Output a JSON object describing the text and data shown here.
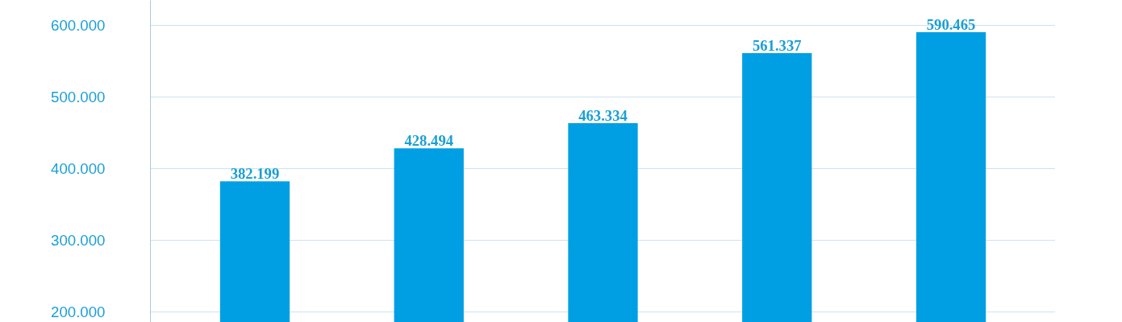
{
  "chart_data": {
    "type": "bar",
    "categories": [
      null,
      null,
      null,
      null,
      null
    ],
    "values": [
      382199,
      428494,
      463334,
      561337,
      590465
    ],
    "value_labels": [
      "382.199",
      "428.494",
      "463.334",
      "561.337",
      "590.465"
    ],
    "color": "#009fe3",
    "ylim": [
      185400,
      634800
    ],
    "yticks": [
      {
        "value": 200000,
        "label": "200.000"
      },
      {
        "value": 300000,
        "label": "300.000"
      },
      {
        "value": 400000,
        "label": "400.000"
      },
      {
        "value": 500000,
        "label": "500.000"
      },
      {
        "value": 600000,
        "label": "600.000"
      }
    ],
    "grid": "y",
    "tick_labels": "y"
  }
}
